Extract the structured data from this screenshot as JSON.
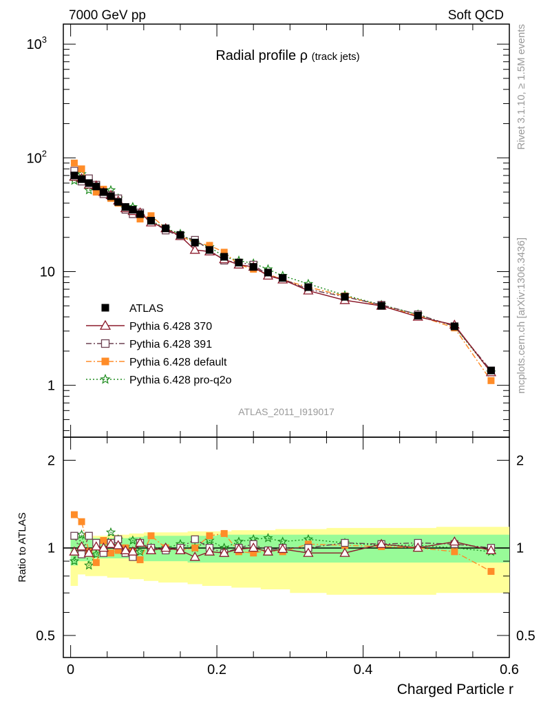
{
  "header": {
    "left": "7000 GeV pp",
    "right": "Soft QCD"
  },
  "side_text": {
    "upper": "Rivet 3.1.10, ≥ 1.5M events",
    "lower": "mcplots.cern.ch [arXiv:1306.3436]"
  },
  "chart_data": [
    {
      "type": "line",
      "panel": "main",
      "title": "Radial profile",
      "title_symbol": "ρ",
      "title_suffix": "(track jets)",
      "watermark": "ATLAS_2011_I919017",
      "yscale": "log",
      "ylim": [
        0.35,
        1500
      ],
      "xlim": [
        -0.01,
        0.6
      ],
      "ytick_labels": [
        {
          "v": 1,
          "label": "1"
        },
        {
          "v": 10,
          "label": "10"
        },
        {
          "v": 100,
          "label": "10",
          "exp": "2"
        },
        {
          "v": 1000,
          "label": "10",
          "exp": "3"
        }
      ],
      "x": [
        0.005,
        0.015,
        0.025,
        0.035,
        0.045,
        0.055,
        0.065,
        0.075,
        0.085,
        0.095,
        0.11,
        0.13,
        0.15,
        0.17,
        0.19,
        0.21,
        0.23,
        0.25,
        0.27,
        0.29,
        0.325,
        0.375,
        0.425,
        0.475,
        0.525,
        0.575
      ],
      "legend_position": "middle-left",
      "series": [
        {
          "name": "ATLAS",
          "color": "#000000",
          "marker": "square-filled",
          "values": [
            70,
            65,
            60,
            56,
            50,
            46,
            41,
            37,
            35,
            32,
            28,
            24,
            21,
            18,
            15.5,
            13.5,
            12,
            11,
            9.8,
            8.8,
            7.3,
            6.0,
            5.0,
            4.1,
            3.3,
            1.35
          ]
        },
        {
          "name": "Pythia 6.428 370",
          "color": "#8b1a2b",
          "marker": "triangle-open",
          "line": "solid",
          "values": [
            68,
            66,
            58,
            57,
            50,
            47,
            42,
            36,
            34,
            33,
            27,
            24,
            20.5,
            15.5,
            15,
            12.8,
            11.5,
            11,
            9.2,
            8.5,
            6.8,
            5.6,
            5.0,
            4.0,
            3.4,
            1.3
          ]
        },
        {
          "name": "Pythia 6.428 391",
          "color": "#6b4050",
          "marker": "square-open",
          "line": "dashdot",
          "values": [
            77,
            62,
            66,
            58,
            48,
            47,
            44,
            35,
            32,
            33,
            28,
            23,
            20.5,
            19,
            15.5,
            12.5,
            12,
            11.5,
            9.3,
            8.6,
            7.0,
            6.0,
            5.1,
            4.2,
            3.3,
            1.35
          ]
        },
        {
          "name": "Pythia 6.428 default",
          "color": "#ff8c28",
          "marker": "square-filled",
          "line": "dashdot",
          "values": [
            90,
            80,
            58,
            50,
            53,
            44,
            40,
            37,
            34,
            29,
            31,
            24,
            20.5,
            18,
            17,
            14.8,
            11.5,
            10.5,
            9.5,
            8.5,
            7.3,
            6.1,
            5.0,
            4.1,
            3.2,
            1.1
          ]
        },
        {
          "name": "Pythia 6.428 pro-q2o",
          "color": "#1e8c1e",
          "marker": "star",
          "line": "dotted",
          "values": [
            63,
            72,
            52,
            53,
            49,
            52,
            44,
            36,
            37,
            31,
            28,
            24,
            21.5,
            18,
            16.5,
            13.5,
            12.5,
            11.8,
            10.5,
            9.2,
            7.8,
            6.2,
            5.1,
            4.2,
            3.3,
            1.3
          ]
        }
      ]
    },
    {
      "type": "line",
      "panel": "ratio",
      "xlabel": "Charged Particle r",
      "ylabel": "Ratio to ATLAS",
      "yscale": "log",
      "ylim": [
        0.42,
        2.4
      ],
      "xlim": [
        -0.01,
        0.6
      ],
      "xtick_labels": [
        {
          "v": 0,
          "label": "0"
        },
        {
          "v": 0.2,
          "label": "0.2"
        },
        {
          "v": 0.4,
          "label": "0.4"
        },
        {
          "v": 0.6,
          "label": "0.6"
        }
      ],
      "ytick_labels": [
        {
          "v": 0.5,
          "label": "0.5"
        },
        {
          "v": 1,
          "label": "1"
        },
        {
          "v": 2,
          "label": "2"
        }
      ],
      "band_stat": {
        "lower": [
          0.87,
          0.9,
          0.9,
          0.92,
          0.92,
          0.92,
          0.92,
          0.92,
          0.91,
          0.91,
          0.9,
          0.9,
          0.9,
          0.89,
          0.89,
          0.89,
          0.89,
          0.89,
          0.89,
          0.89,
          0.89,
          0.89,
          0.89,
          0.89,
          0.89,
          0.89
        ],
        "upper": [
          1.13,
          1.1,
          1.1,
          1.08,
          1.08,
          1.08,
          1.08,
          1.08,
          1.09,
          1.09,
          1.1,
          1.1,
          1.1,
          1.1,
          1.1,
          1.11,
          1.11,
          1.11,
          1.11,
          1.11,
          1.11,
          1.11,
          1.11,
          1.11,
          1.11,
          1.11
        ]
      },
      "band_syst": {
        "lower": [
          0.74,
          0.81,
          0.8,
          0.8,
          0.8,
          0.79,
          0.79,
          0.79,
          0.78,
          0.78,
          0.77,
          0.76,
          0.76,
          0.75,
          0.74,
          0.74,
          0.73,
          0.73,
          0.72,
          0.72,
          0.7,
          0.69,
          0.69,
          0.69,
          0.7,
          0.7
        ],
        "upper": [
          1.1,
          1.1,
          1.1,
          1.1,
          1.1,
          1.11,
          1.11,
          1.11,
          1.12,
          1.12,
          1.13,
          1.13,
          1.13,
          1.14,
          1.14,
          1.14,
          1.15,
          1.15,
          1.15,
          1.16,
          1.16,
          1.17,
          1.17,
          1.17,
          1.18,
          1.18
        ]
      },
      "series": [
        {
          "name": "Pythia 6.428 370",
          "color": "#8b1a2b",
          "marker": "triangle-open",
          "line": "solid",
          "values": [
            0.97,
            1.01,
            0.96,
            1.01,
            1.0,
            1.03,
            1.02,
            0.98,
            0.97,
            1.04,
            0.98,
            1.0,
            0.98,
            0.93,
            0.97,
            0.96,
            0.99,
            1.0,
            0.97,
            0.99,
            0.96,
            0.96,
            1.03,
            1.0,
            1.05,
            0.98
          ]
        },
        {
          "name": "Pythia 6.428 391",
          "color": "#6b4050",
          "marker": "square-open",
          "line": "dashdot",
          "values": [
            1.1,
            0.95,
            1.1,
            1.04,
            0.96,
            1.04,
            1.07,
            0.96,
            0.93,
            1.04,
            1.0,
            0.98,
            1.0,
            1.07,
            1.0,
            0.96,
            1.0,
            1.03,
            0.98,
            1.0,
            1.0,
            1.04,
            1.03,
            1.04,
            1.03,
            1.0
          ]
        },
        {
          "name": "Pythia 6.428 default",
          "color": "#ff8c28",
          "marker": "square-filled",
          "line": "dashdot",
          "values": [
            1.3,
            1.23,
            0.97,
            0.89,
            1.06,
            0.96,
            0.98,
            1.0,
            0.97,
            0.91,
            1.1,
            1.0,
            0.98,
            1.0,
            1.1,
            1.12,
            0.97,
            0.96,
            0.98,
            0.97,
            1.03,
            1.02,
            1.01,
            1.0,
            0.97,
            0.83
          ]
        },
        {
          "name": "Pythia 6.428 pro-q2o",
          "color": "#1e8c1e",
          "marker": "star",
          "line": "dotted",
          "values": [
            0.9,
            1.11,
            0.87,
            0.95,
            0.98,
            1.13,
            1.07,
            0.97,
            1.06,
            0.97,
            1.0,
            1.0,
            1.03,
            1.0,
            1.06,
            1.0,
            1.05,
            1.07,
            1.08,
            1.05,
            1.07,
            1.04,
            1.02,
            1.02,
            1.0,
            0.97
          ]
        }
      ]
    }
  ]
}
